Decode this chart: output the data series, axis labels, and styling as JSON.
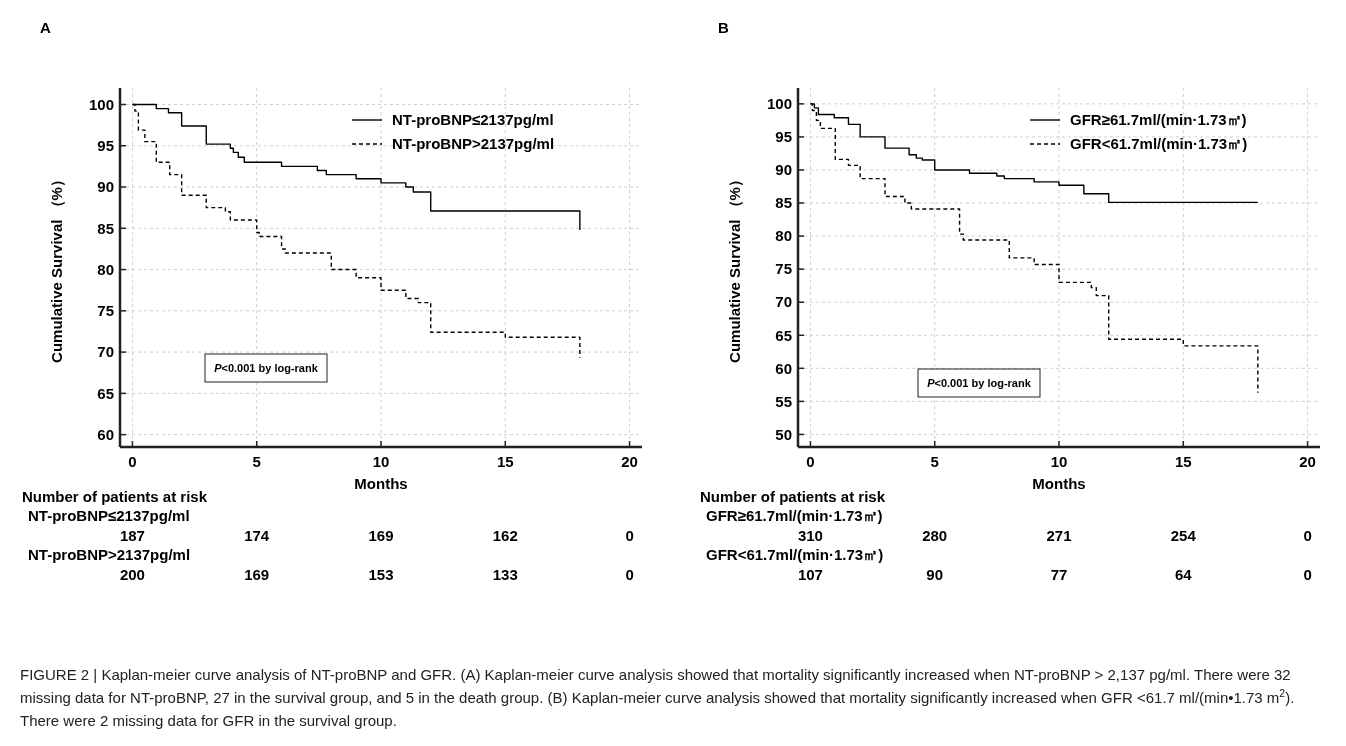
{
  "chart_data": [
    {
      "type": "step",
      "title": "A",
      "xlabel": "Months",
      "ylabel": "Cumulative  Survival （%）",
      "xlim": [
        -0.5,
        20.5
      ],
      "ylim": [
        58.5,
        102
      ],
      "xticks": [
        0,
        5,
        10,
        15,
        20
      ],
      "yticks": [
        60,
        65,
        70,
        75,
        80,
        85,
        90,
        95,
        100
      ],
      "grid": true,
      "legend": "top right",
      "series": [
        {
          "name": "NT-proBNP≤2137pg/ml",
          "color": "#000000",
          "line_style": "solid",
          "x": [
            0,
            0.96,
            1.45,
            1.98,
            2.97,
            3.94,
            4.06,
            4.26,
            4.5,
            6.0,
            7.44,
            7.8,
            9.0,
            10.0,
            11.0,
            11.3,
            12.0,
            18.0
          ],
          "values": [
            100,
            99.5,
            99,
            97.4,
            95.2,
            94.7,
            94.2,
            93.6,
            93.0,
            92.5,
            92.0,
            91.5,
            91.0,
            90.5,
            90.0,
            89.4,
            87.1,
            84.8
          ]
        },
        {
          "name": "NT-proBNP>2137pg/ml",
          "color": "#000000",
          "line_style": "dashed",
          "x": [
            0,
            0.1,
            0.24,
            0.5,
            0.96,
            1.5,
            1.98,
            2.97,
            3.74,
            3.94,
            5.0,
            5.1,
            6.0,
            6.15,
            8.0,
            9.0,
            10.0,
            11.0,
            11.5,
            12.0,
            15.0,
            18.0
          ],
          "values": [
            100,
            99.2,
            96.9,
            95.5,
            93.0,
            91.5,
            89.0,
            87.5,
            87.0,
            86.0,
            84.5,
            84.0,
            82.5,
            82.0,
            80.0,
            79.0,
            77.5,
            76.5,
            76.0,
            72.4,
            71.8,
            69.3
          ]
        }
      ],
      "annotations": [
        "P<0.001 by log-rank",
        "Number of patients at risk",
        "NT-proBNP≤2137pg/ml",
        "187",
        "174",
        "169",
        "162",
        "0",
        "NT-proBNP>2137pg/ml",
        "200",
        "169",
        "153",
        "133",
        "0"
      ]
    },
    {
      "type": "step",
      "title": "B",
      "xlabel": "Months",
      "ylabel": "Cumulative  Survival （%）",
      "xlim": [
        -0.5,
        20.5
      ],
      "ylim": [
        48.1,
        102.4
      ],
      "xticks": [
        0,
        5,
        10,
        15,
        20
      ],
      "yticks": [
        50,
        55,
        60,
        65,
        70,
        75,
        80,
        85,
        90,
        95,
        100
      ],
      "grid": true,
      "legend": "top right",
      "series": [
        {
          "name": "GFR≥61.7ml/(min·1.73㎡)",
          "color": "#000000",
          "line_style": "solid",
          "x": [
            0,
            0.16,
            0.32,
            0.96,
            1.53,
            2.0,
            3.0,
            3.97,
            4.26,
            4.5,
            5.0,
            6.4,
            7.5,
            7.8,
            9.0,
            10.0,
            11.0,
            12.0,
            18.0
          ],
          "values": [
            100,
            99.4,
            98.4,
            97.9,
            96.9,
            95.0,
            93.3,
            92.3,
            91.8,
            91.5,
            90.0,
            89.5,
            89.1,
            88.7,
            88.2,
            87.7,
            86.4,
            85.1,
            85.1
          ]
        },
        {
          "name": "GFR<61.7ml/(min·1.73㎡)",
          "color": "#000000",
          "line_style": "dashed",
          "x": [
            0,
            0.08,
            0.24,
            0.4,
            1.0,
            1.53,
            2.0,
            3.0,
            3.8,
            4.06,
            6.0,
            6.15,
            8.0,
            9.0,
            10.0,
            11.3,
            11.5,
            12.0,
            15.0,
            18.0
          ],
          "values": [
            100,
            99.0,
            97.5,
            96.3,
            91.6,
            90.7,
            88.7,
            86.0,
            85.0,
            84.1,
            80.3,
            79.4,
            76.7,
            75.7,
            73.0,
            72.2,
            71.0,
            64.4,
            63.4,
            56.3
          ]
        }
      ],
      "annotations": [
        "P<0.001 by log-rank",
        "Number of patients at risk",
        "GFR≥61.7ml/(min·1.73㎡)",
        "310",
        "280",
        "271",
        "254",
        "0",
        "GFR<61.7ml/(min·1.73㎡)",
        "107",
        "90",
        "77",
        "64",
        "0"
      ]
    },
    {
      "type": "other",
      "annotations": [
        "FIGURE 2 | Kaplan-meier curve analysis of NT-proBNP and GFR. (A) Kaplan-meier curve analysis showed that mortality significantly increased when NT-proBNP > 2,137 pg/ml. There were 32 missing data for NT-proBNP, 27 in the survival group, and 5 in the death group. (B) Kaplan-meier curve analysis showed that mortality significantly increased when GFR <61.7 ml/(min•1.73 m$^{2}$). There were 2 missing data for GFR in the survival group."
      ]
    }
  ]
}
